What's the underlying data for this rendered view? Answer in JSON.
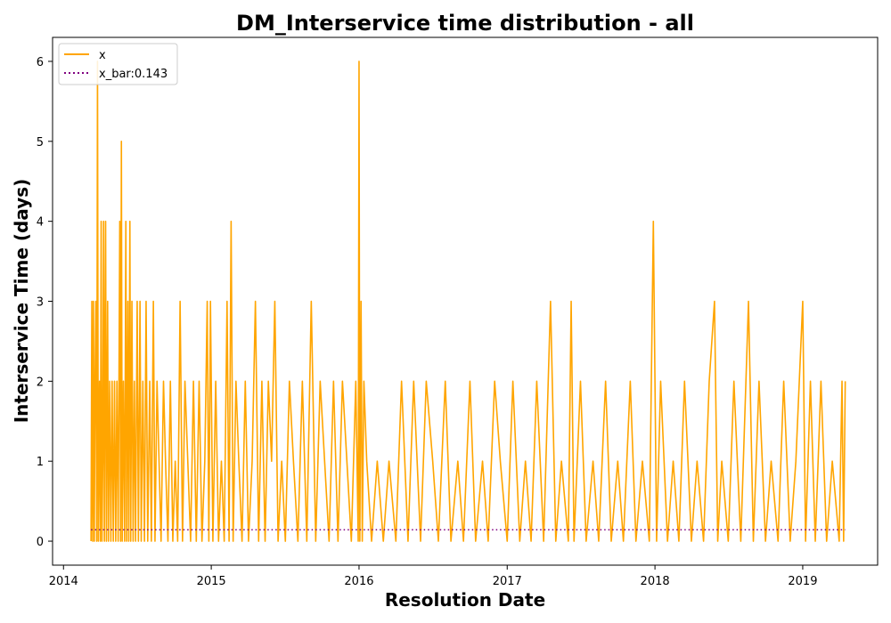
{
  "chart_data": {
    "type": "line",
    "title": "DM_Interservice time distribution - all",
    "xlabel": "Resolution Date",
    "ylabel": "Interservice Time (days)",
    "xlim": [
      "2013-12-05",
      "2019-07-05"
    ],
    "ylim": [
      -0.3,
      6.3
    ],
    "x_ticks": [
      "2014",
      "2015",
      "2016",
      "2017",
      "2018",
      "2019"
    ],
    "y_ticks": [
      "0",
      "1",
      "2",
      "3",
      "4",
      "5",
      "6"
    ],
    "legend": {
      "placement": "upper-left"
    },
    "series": [
      {
        "name": "x",
        "color": "#FFA500",
        "style": "solid",
        "points": [
          [
            "2014-03-10",
            0
          ],
          [
            "2014-03-12",
            3
          ],
          [
            "2014-03-14",
            0
          ],
          [
            "2014-03-16",
            3
          ],
          [
            "2014-03-18",
            0
          ],
          [
            "2014-03-20",
            2
          ],
          [
            "2014-03-22",
            3
          ],
          [
            "2014-03-24",
            0
          ],
          [
            "2014-03-26",
            6
          ],
          [
            "2014-03-28",
            0
          ],
          [
            "2014-03-31",
            2
          ],
          [
            "2014-04-02",
            0
          ],
          [
            "2014-04-04",
            4
          ],
          [
            "2014-04-06",
            0
          ],
          [
            "2014-04-08",
            1
          ],
          [
            "2014-04-10",
            4
          ],
          [
            "2014-04-12",
            0
          ],
          [
            "2014-04-15",
            4
          ],
          [
            "2014-04-17",
            0
          ],
          [
            "2014-04-20",
            3
          ],
          [
            "2014-04-22",
            0
          ],
          [
            "2014-04-25",
            2
          ],
          [
            "2014-04-28",
            0
          ],
          [
            "2014-05-01",
            2
          ],
          [
            "2014-05-04",
            0
          ],
          [
            "2014-05-07",
            2
          ],
          [
            "2014-05-10",
            0
          ],
          [
            "2014-05-13",
            2
          ],
          [
            "2014-05-16",
            0
          ],
          [
            "2014-05-20",
            4
          ],
          [
            "2014-05-22",
            0
          ],
          [
            "2014-05-24",
            5
          ],
          [
            "2014-05-26",
            0
          ],
          [
            "2014-05-29",
            2
          ],
          [
            "2014-06-01",
            0
          ],
          [
            "2014-06-04",
            4
          ],
          [
            "2014-06-06",
            0
          ],
          [
            "2014-06-09",
            3
          ],
          [
            "2014-06-11",
            0
          ],
          [
            "2014-06-14",
            4
          ],
          [
            "2014-06-16",
            0
          ],
          [
            "2014-06-19",
            3
          ],
          [
            "2014-06-22",
            0
          ],
          [
            "2014-06-25",
            2
          ],
          [
            "2014-06-28",
            0
          ],
          [
            "2014-07-02",
            3
          ],
          [
            "2014-07-05",
            0
          ],
          [
            "2014-07-09",
            3
          ],
          [
            "2014-07-12",
            0
          ],
          [
            "2014-07-16",
            2
          ],
          [
            "2014-07-20",
            0
          ],
          [
            "2014-07-24",
            3
          ],
          [
            "2014-07-28",
            0
          ],
          [
            "2014-08-02",
            2
          ],
          [
            "2014-08-06",
            0
          ],
          [
            "2014-08-11",
            3
          ],
          [
            "2014-08-15",
            0
          ],
          [
            "2014-08-20",
            2
          ],
          [
            "2014-08-25",
            1
          ],
          [
            "2014-08-30",
            0
          ],
          [
            "2014-09-05",
            2
          ],
          [
            "2014-09-10",
            1
          ],
          [
            "2014-09-16",
            0
          ],
          [
            "2014-09-22",
            2
          ],
          [
            "2014-09-28",
            0
          ],
          [
            "2014-10-04",
            1
          ],
          [
            "2014-10-10",
            0
          ],
          [
            "2014-10-16",
            3
          ],
          [
            "2014-10-22",
            0
          ],
          [
            "2014-10-28",
            2
          ],
          [
            "2014-11-04",
            1
          ],
          [
            "2014-11-11",
            0
          ],
          [
            "2014-11-18",
            2
          ],
          [
            "2014-11-25",
            0
          ],
          [
            "2014-12-02",
            2
          ],
          [
            "2014-12-09",
            0
          ],
          [
            "2014-12-16",
            1
          ],
          [
            "2014-12-22",
            3
          ],
          [
            "2014-12-26",
            0
          ],
          [
            "2014-12-30",
            3
          ],
          [
            "2015-01-05",
            0
          ],
          [
            "2015-01-12",
            2
          ],
          [
            "2015-01-19",
            0
          ],
          [
            "2015-01-26",
            1
          ],
          [
            "2015-02-02",
            0
          ],
          [
            "2015-02-09",
            3
          ],
          [
            "2015-02-14",
            0
          ],
          [
            "2015-02-19",
            4
          ],
          [
            "2015-02-24",
            0
          ],
          [
            "2015-03-03",
            2
          ],
          [
            "2015-03-10",
            1
          ],
          [
            "2015-03-18",
            0
          ],
          [
            "2015-03-26",
            2
          ],
          [
            "2015-04-03",
            0
          ],
          [
            "2015-04-12",
            1
          ],
          [
            "2015-04-20",
            3
          ],
          [
            "2015-04-28",
            0
          ],
          [
            "2015-05-06",
            2
          ],
          [
            "2015-05-14",
            0
          ],
          [
            "2015-05-22",
            2
          ],
          [
            "2015-05-30",
            1
          ],
          [
            "2015-06-07",
            3
          ],
          [
            "2015-06-15",
            0
          ],
          [
            "2015-06-24",
            1
          ],
          [
            "2015-07-03",
            0
          ],
          [
            "2015-07-13",
            2
          ],
          [
            "2015-07-23",
            1
          ],
          [
            "2015-08-03",
            0
          ],
          [
            "2015-08-14",
            2
          ],
          [
            "2015-08-25",
            0
          ],
          [
            "2015-09-05",
            3
          ],
          [
            "2015-09-16",
            0
          ],
          [
            "2015-09-27",
            2
          ],
          [
            "2015-10-08",
            1
          ],
          [
            "2015-10-19",
            0
          ],
          [
            "2015-10-30",
            2
          ],
          [
            "2015-11-10",
            0
          ],
          [
            "2015-11-21",
            2
          ],
          [
            "2015-12-02",
            1
          ],
          [
            "2015-12-13",
            0
          ],
          [
            "2015-12-24",
            2
          ],
          [
            "2015-12-30",
            0
          ],
          [
            "2016-01-01",
            6
          ],
          [
            "2016-01-03",
            0
          ],
          [
            "2016-01-06",
            3
          ],
          [
            "2016-01-09",
            0
          ],
          [
            "2016-01-13",
            2
          ],
          [
            "2016-01-20",
            1
          ],
          [
            "2016-02-01",
            0
          ],
          [
            "2016-02-15",
            1
          ],
          [
            "2016-03-01",
            0
          ],
          [
            "2016-03-15",
            1
          ],
          [
            "2016-04-01",
            0
          ],
          [
            "2016-04-15",
            2
          ],
          [
            "2016-05-01",
            0
          ],
          [
            "2016-05-15",
            2
          ],
          [
            "2016-06-01",
            0
          ],
          [
            "2016-06-15",
            2
          ],
          [
            "2016-07-01",
            1
          ],
          [
            "2016-07-15",
            0
          ],
          [
            "2016-08-01",
            2
          ],
          [
            "2016-08-15",
            0
          ],
          [
            "2016-09-01",
            1
          ],
          [
            "2016-09-15",
            0
          ],
          [
            "2016-10-01",
            2
          ],
          [
            "2016-10-15",
            0
          ],
          [
            "2016-11-01",
            1
          ],
          [
            "2016-11-15",
            0
          ],
          [
            "2016-12-01",
            2
          ],
          [
            "2016-12-15",
            1
          ],
          [
            "2017-01-01",
            0
          ],
          [
            "2017-01-15",
            2
          ],
          [
            "2017-02-01",
            0
          ],
          [
            "2017-02-15",
            1
          ],
          [
            "2017-03-01",
            0
          ],
          [
            "2017-03-15",
            2
          ],
          [
            "2017-04-01",
            0
          ],
          [
            "2017-04-18",
            3
          ],
          [
            "2017-05-01",
            0
          ],
          [
            "2017-05-15",
            1
          ],
          [
            "2017-06-01",
            0
          ],
          [
            "2017-06-08",
            3
          ],
          [
            "2017-06-15",
            0
          ],
          [
            "2017-07-01",
            2
          ],
          [
            "2017-07-15",
            0
          ],
          [
            "2017-08-01",
            1
          ],
          [
            "2017-08-15",
            0
          ],
          [
            "2017-09-01",
            2
          ],
          [
            "2017-09-15",
            0
          ],
          [
            "2017-10-01",
            1
          ],
          [
            "2017-10-15",
            0
          ],
          [
            "2017-11-01",
            2
          ],
          [
            "2017-11-15",
            0
          ],
          [
            "2017-12-01",
            1
          ],
          [
            "2017-12-18",
            0
          ],
          [
            "2017-12-28",
            4
          ],
          [
            "2018-01-05",
            0
          ],
          [
            "2018-01-15",
            2
          ],
          [
            "2018-02-01",
            0
          ],
          [
            "2018-02-15",
            1
          ],
          [
            "2018-03-01",
            0
          ],
          [
            "2018-03-15",
            2
          ],
          [
            "2018-04-01",
            0
          ],
          [
            "2018-04-15",
            1
          ],
          [
            "2018-05-01",
            0
          ],
          [
            "2018-05-15",
            2
          ],
          [
            "2018-05-28",
            3
          ],
          [
            "2018-06-05",
            0
          ],
          [
            "2018-06-15",
            1
          ],
          [
            "2018-07-01",
            0
          ],
          [
            "2018-07-15",
            2
          ],
          [
            "2018-08-01",
            0
          ],
          [
            "2018-08-20",
            3
          ],
          [
            "2018-09-01",
            0
          ],
          [
            "2018-09-15",
            2
          ],
          [
            "2018-10-01",
            0
          ],
          [
            "2018-10-15",
            1
          ],
          [
            "2018-11-01",
            0
          ],
          [
            "2018-11-15",
            2
          ],
          [
            "2018-12-01",
            0
          ],
          [
            "2018-12-15",
            1
          ],
          [
            "2019-01-01",
            3
          ],
          [
            "2019-01-08",
            0
          ],
          [
            "2019-01-20",
            2
          ],
          [
            "2019-02-01",
            0
          ],
          [
            "2019-02-15",
            2
          ],
          [
            "2019-03-01",
            0
          ],
          [
            "2019-03-15",
            1
          ],
          [
            "2019-04-01",
            0
          ],
          [
            "2019-04-08",
            2
          ],
          [
            "2019-04-12",
            0
          ],
          [
            "2019-04-16",
            2
          ]
        ]
      },
      {
        "name": "x_bar:0.143",
        "color": "#800080",
        "style": "dotted",
        "points": [
          [
            "2014-03-10",
            0.143
          ],
          [
            "2019-04-16",
            0.143
          ]
        ]
      }
    ]
  }
}
